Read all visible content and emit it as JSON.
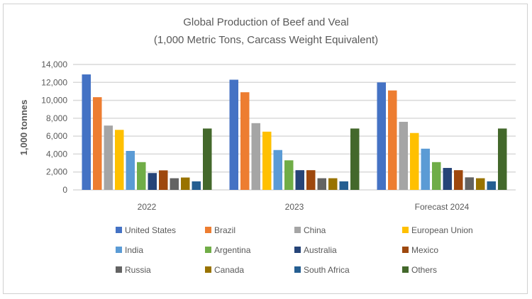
{
  "chart_data": {
    "type": "bar",
    "title": "Global Production of Beef and Veal",
    "subtitle": "(1,000 Metric Tons, Carcass Weight Equivalent)",
    "xlabel": "",
    "ylabel": "1,000 tonnes",
    "ylim": [
      0,
      14000
    ],
    "yticks": [
      "0",
      "2,000",
      "4,000",
      "6,000",
      "8,000",
      "10,000",
      "12,000",
      "14,000"
    ],
    "grid": true,
    "legend_position": "bottom",
    "categories": [
      "2022",
      "2023",
      "Forecast 2024"
    ],
    "series": [
      {
        "name": "United States",
        "color": "#4472C4",
        "values": [
          12890,
          12300,
          12000
        ]
      },
      {
        "name": "Brazil",
        "color": "#ED7D31",
        "values": [
          10350,
          10900,
          11100
        ]
      },
      {
        "name": "China",
        "color": "#A5A5A5",
        "values": [
          7180,
          7450,
          7600
        ]
      },
      {
        "name": "European Union",
        "color": "#FFC000",
        "values": [
          6700,
          6500,
          6350
        ]
      },
      {
        "name": "India",
        "color": "#5B9BD5",
        "values": [
          4350,
          4450,
          4600
        ]
      },
      {
        "name": "Argentina",
        "color": "#70AD47",
        "values": [
          3100,
          3300,
          3100
        ]
      },
      {
        "name": "Australia",
        "color": "#264478",
        "values": [
          1880,
          2200,
          2450
        ]
      },
      {
        "name": "Mexico",
        "color": "#9E480E",
        "values": [
          2180,
          2200,
          2200
        ]
      },
      {
        "name": "Russia",
        "color": "#636363",
        "values": [
          1300,
          1300,
          1400
        ]
      },
      {
        "name": "Canada",
        "color": "#997300",
        "values": [
          1380,
          1300,
          1300
        ]
      },
      {
        "name": "South Africa",
        "color": "#255E91",
        "values": [
          950,
          950,
          950
        ]
      },
      {
        "name": "Others",
        "color": "#43682B",
        "values": [
          6850,
          6850,
          6850
        ]
      }
    ]
  }
}
